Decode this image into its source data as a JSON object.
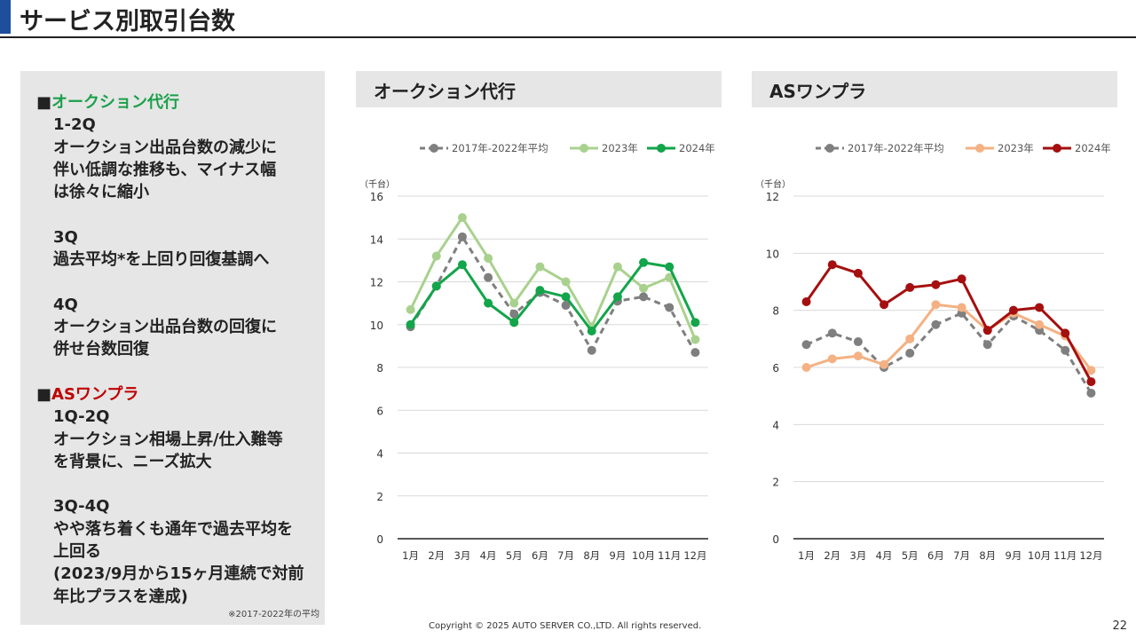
{
  "header": {
    "title": "サービス別取引台数"
  },
  "summary": {
    "sections": [
      {
        "marker": "■",
        "heading": "オークション代行",
        "heading_color": "#1aa049",
        "lines": [
          "1-2Q",
          "オークション出品台数の減少に",
          "伴い低調な推移も、マイナス幅",
          "は徐々に縮小",
          "",
          "3Q",
          "過去平均*を上回り回復基調へ",
          "",
          "4Q",
          "オークション出品台数の回復に",
          "併せ台数回復"
        ]
      },
      {
        "marker": "■",
        "heading": "ASワンプラ",
        "heading_color": "#c00000",
        "lines": [
          "1Q-2Q",
          "オークション相場上昇/仕入難等",
          "を背景に、ニーズ拡大",
          "",
          "3Q-4Q",
          "やや落ち着くも通年で過去平均を",
          "上回る",
          "(2023/9月から15ヶ月連続で対前",
          "年比プラスを達成)"
        ]
      }
    ],
    "footnote": "※2017-2022年の平均"
  },
  "footer": {
    "copyright": "Copyright © 2025 AUTO SERVER CO.,LTD.  All rights reserved.",
    "page_number": "22"
  },
  "chart_data": [
    {
      "type": "line",
      "title": "オークション代行",
      "unit_label": "（千台）",
      "categories": [
        "1月",
        "2月",
        "3月",
        "4月",
        "5月",
        "6月",
        "7月",
        "8月",
        "9月",
        "10月",
        "11月",
        "12月"
      ],
      "ylim": [
        0,
        16
      ],
      "yticks": [
        0,
        2,
        4,
        6,
        8,
        10,
        12,
        14,
        16
      ],
      "grid": true,
      "legend_position": "top",
      "series": [
        {
          "name": "2017年-2022年平均",
          "color": "#7f7f7f",
          "dashed": true,
          "values": [
            9.9,
            11.8,
            14.1,
            12.2,
            10.5,
            11.5,
            10.9,
            8.8,
            11.1,
            11.3,
            10.8,
            8.7
          ]
        },
        {
          "name": "2023年",
          "color": "#a9d18e",
          "dashed": false,
          "values": [
            10.7,
            13.2,
            15.0,
            13.1,
            11.0,
            12.7,
            12.0,
            9.9,
            12.7,
            11.7,
            12.2,
            9.3
          ]
        },
        {
          "name": "2024年",
          "color": "#12a54a",
          "dashed": false,
          "values": [
            10.0,
            11.8,
            12.8,
            11.0,
            10.1,
            11.6,
            11.3,
            9.7,
            11.3,
            12.9,
            12.7,
            10.1
          ]
        }
      ]
    },
    {
      "type": "line",
      "title": "ASワンプラ",
      "unit_label": "（千台）",
      "categories": [
        "1月",
        "2月",
        "3月",
        "4月",
        "5月",
        "6月",
        "7月",
        "8月",
        "9月",
        "10月",
        "11月",
        "12月"
      ],
      "ylim": [
        0,
        12
      ],
      "yticks": [
        0,
        2,
        4,
        6,
        8,
        10,
        12
      ],
      "grid": true,
      "legend_position": "top",
      "series": [
        {
          "name": "2017年-2022年平均",
          "color": "#7f7f7f",
          "dashed": true,
          "values": [
            6.8,
            7.2,
            6.9,
            6.0,
            6.5,
            7.5,
            7.9,
            6.8,
            7.8,
            7.3,
            6.6,
            5.1
          ]
        },
        {
          "name": "2023年",
          "color": "#f4b183",
          "dashed": false,
          "values": [
            6.0,
            6.3,
            6.4,
            6.1,
            7.0,
            8.2,
            8.1,
            7.3,
            7.9,
            7.5,
            7.1,
            5.9
          ]
        },
        {
          "name": "2024年",
          "color": "#a50f0f",
          "dashed": false,
          "values": [
            8.3,
            9.6,
            9.3,
            8.2,
            8.8,
            8.9,
            9.1,
            7.3,
            8.0,
            8.1,
            7.2,
            5.5
          ]
        }
      ]
    }
  ]
}
